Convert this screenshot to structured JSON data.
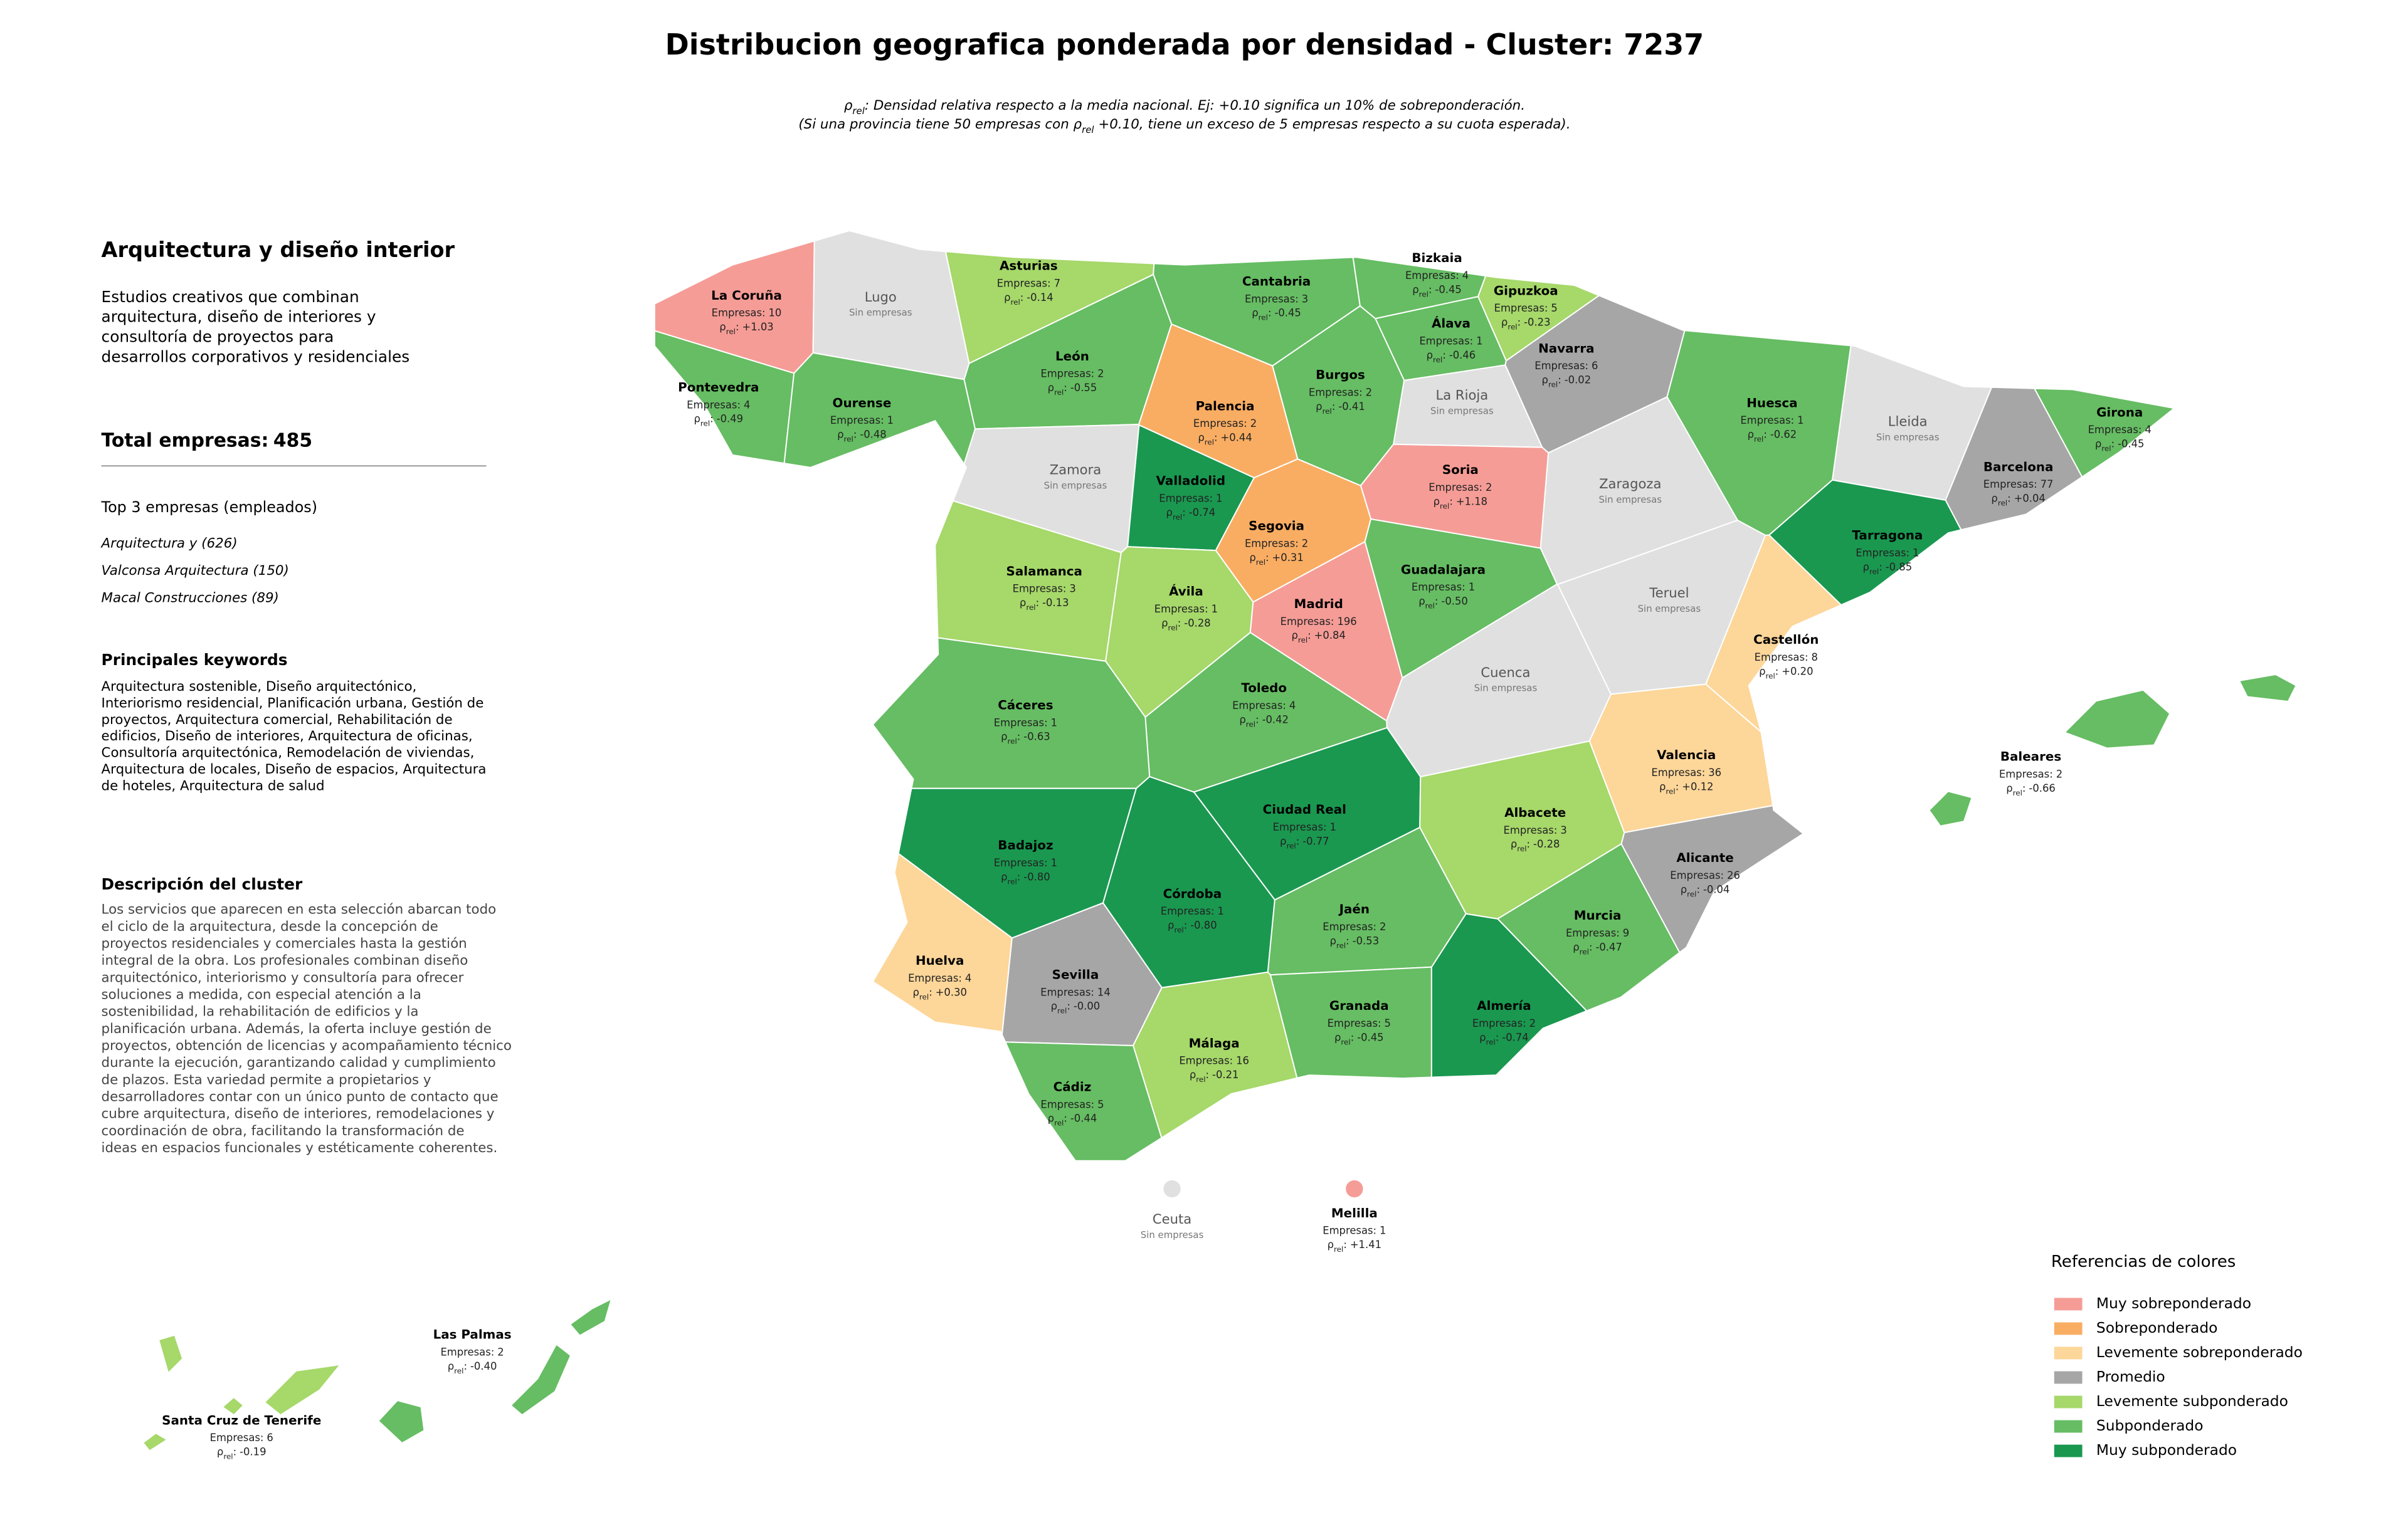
{
  "header": {
    "title": "Distribucion geografica ponderada por densidad - Cluster: 7237",
    "subtitle": [
      [
        {
          "text": "ρ"
        },
        {
          "text": "rel",
          "sub": true
        },
        {
          "text": ": Densidad relativa respecto a la media nacional. Ej: +0.10 significa un 10% de sobreponderación."
        }
      ],
      [
        {
          "text": "(Si una provincia tiene 50 empresas con ρ"
        },
        {
          "text": "rel",
          "sub": true
        },
        {
          "text": " +0.10, tiene un exceso de 5 empresas respecto a su cuota esperada)."
        }
      ]
    ]
  },
  "sidebar": {
    "title": "Arquitectura y diseño interior",
    "summary": [
      "Estudios creativos que combinan",
      "arquitectura, diseño de interiores y",
      "consultoría de proyectos para",
      "desarrollos corporativos y residenciales"
    ],
    "total_label": "Total empresas:",
    "total": 485,
    "top_heading": "Top 3 empresas (empleados)",
    "top": [
      "Arquitectura y (626)",
      "Valconsa Arquitectura (150)",
      "Macal Construcciones (89)"
    ],
    "keywords_heading": "Principales keywords",
    "keywords": [
      "Arquitectura sostenible, Diseño arquitectónico,",
      "Interiorismo residencial, Planificación urbana, Gestión de",
      "proyectos, Arquitectura comercial, Rehabilitación de",
      "edificios, Diseño de interiores, Arquitectura de oficinas,",
      "Consultoría arquitectónica, Remodelación de viviendas,",
      "Arquitectura de locales, Diseño de espacios, Arquitectura",
      "de hoteles, Arquitectura de salud"
    ],
    "description_heading": "Descripción del cluster",
    "description": [
      "Los servicios que aparecen en esta selección abarcan todo",
      "el ciclo de la arquitectura, desde la concepción de",
      "proyectos residenciales y comerciales hasta la gestión",
      "integral de la obra. Los profesionales combinan diseño",
      "arquitectónico, interiorismo y consultoría para ofrecer",
      "soluciones a medida, con especial atención a la",
      "sostenibilidad, la rehabilitación de edificios y la",
      "planificación urbana. Además, la oferta incluye gestión de",
      "proyectos, obtención de licencias y acompañamiento técnico",
      "durante la ejecución, garantizando calidad y cumplimiento",
      "de plazos. Esta variedad permite a propietarios y",
      "desarrolladores contar con un único punto de contacto que",
      "cubre arquitectura, diseño de interiores, remodelaciones y",
      "coordinación de obra, facilitando la transformación de",
      "ideas en espacios funcionales y estéticamente coherentes."
    ]
  },
  "map": {
    "empresas_label": "Empresas:",
    "rho_symbol": "ρ",
    "rho_subscript": "rel",
    "rho_suffix": ":",
    "no_data_label": "Sin empresas",
    "no_data_color": "#e0e0e0",
    "provinces": [
      {
        "name": "La Coruña",
        "empresas": 10,
        "rho": 1.03,
        "rho_label": "+1.03",
        "category": 0
      },
      {
        "name": "Lugo"
      },
      {
        "name": "Asturias",
        "empresas": 7,
        "rho": -0.14,
        "rho_label": "-0.14",
        "category": 4
      },
      {
        "name": "Cantabria",
        "empresas": 3,
        "rho": -0.45,
        "rho_label": "-0.45",
        "category": 5
      },
      {
        "name": "Bizkaia",
        "empresas": 4,
        "rho": -0.45,
        "rho_label": "-0.45",
        "category": 5
      },
      {
        "name": "Gipuzkoa",
        "empresas": 5,
        "rho": -0.23,
        "rho_label": "-0.23",
        "category": 4
      },
      {
        "name": "Álava",
        "empresas": 1,
        "rho": -0.46,
        "rho_label": "-0.46",
        "category": 5
      },
      {
        "name": "Navarra",
        "empresas": 6,
        "rho": -0.02,
        "rho_label": "-0.02",
        "category": 3
      },
      {
        "name": "Pontevedra",
        "empresas": 4,
        "rho": -0.49,
        "rho_label": "-0.49",
        "category": 5
      },
      {
        "name": "Ourense",
        "empresas": 1,
        "rho": -0.48,
        "rho_label": "-0.48",
        "category": 5
      },
      {
        "name": "León",
        "empresas": 2,
        "rho": -0.55,
        "rho_label": "-0.55",
        "category": 5
      },
      {
        "name": "Palencia",
        "empresas": 2,
        "rho": 0.44,
        "rho_label": "+0.44",
        "category": 1
      },
      {
        "name": "Burgos",
        "empresas": 2,
        "rho": -0.41,
        "rho_label": "-0.41",
        "category": 5
      },
      {
        "name": "La Rioja"
      },
      {
        "name": "Huesca",
        "empresas": 1,
        "rho": -0.62,
        "rho_label": "-0.62",
        "category": 5
      },
      {
        "name": "Lleida"
      },
      {
        "name": "Girona",
        "empresas": 4,
        "rho": -0.45,
        "rho_label": "-0.45",
        "category": 5
      },
      {
        "name": "Zamora"
      },
      {
        "name": "Valladolid",
        "empresas": 1,
        "rho": -0.74,
        "rho_label": "-0.74",
        "category": 6
      },
      {
        "name": "Soria",
        "empresas": 2,
        "rho": 1.18,
        "rho_label": "+1.18",
        "category": 0
      },
      {
        "name": "Zaragoza"
      },
      {
        "name": "Barcelona",
        "empresas": 77,
        "rho": 0.04,
        "rho_label": "+0.04",
        "category": 3
      },
      {
        "name": "Segovia",
        "empresas": 2,
        "rho": 0.31,
        "rho_label": "+0.31",
        "category": 1
      },
      {
        "name": "Tarragona",
        "empresas": 1,
        "rho": -0.85,
        "rho_label": "-0.85",
        "category": 6
      },
      {
        "name": "Salamanca",
        "empresas": 3,
        "rho": -0.13,
        "rho_label": "-0.13",
        "category": 4
      },
      {
        "name": "Guadalajara",
        "empresas": 1,
        "rho": -0.5,
        "rho_label": "-0.50",
        "category": 5
      },
      {
        "name": "Ávila",
        "empresas": 1,
        "rho": -0.28,
        "rho_label": "-0.28",
        "category": 4
      },
      {
        "name": "Madrid",
        "empresas": 196,
        "rho": 0.84,
        "rho_label": "+0.84",
        "category": 0
      },
      {
        "name": "Teruel"
      },
      {
        "name": "Castellón",
        "empresas": 8,
        "rho": 0.2,
        "rho_label": "+0.20",
        "category": 2
      },
      {
        "name": "Cuenca"
      },
      {
        "name": "Toledo",
        "empresas": 4,
        "rho": -0.42,
        "rho_label": "-0.42",
        "category": 5
      },
      {
        "name": "Cáceres",
        "empresas": 1,
        "rho": -0.63,
        "rho_label": "-0.63",
        "category": 5
      },
      {
        "name": "Valencia",
        "empresas": 36,
        "rho": 0.12,
        "rho_label": "+0.12",
        "category": 2
      },
      {
        "name": "Baleares",
        "empresas": 2,
        "rho": -0.66,
        "rho_label": "-0.66",
        "category": 5
      },
      {
        "name": "Ciudad Real",
        "empresas": 1,
        "rho": -0.77,
        "rho_label": "-0.77",
        "category": 6
      },
      {
        "name": "Albacete",
        "empresas": 3,
        "rho": -0.28,
        "rho_label": "-0.28",
        "category": 4
      },
      {
        "name": "Badajoz",
        "empresas": 1,
        "rho": -0.8,
        "rho_label": "-0.80",
        "category": 6
      },
      {
        "name": "Alicante",
        "empresas": 26,
        "rho": -0.04,
        "rho_label": "-0.04",
        "category": 3
      },
      {
        "name": "Córdoba",
        "empresas": 1,
        "rho": -0.8,
        "rho_label": "-0.80",
        "category": 6
      },
      {
        "name": "Jaén",
        "empresas": 2,
        "rho": -0.53,
        "rho_label": "-0.53",
        "category": 5
      },
      {
        "name": "Murcia",
        "empresas": 9,
        "rho": -0.47,
        "rho_label": "-0.47",
        "category": 5
      },
      {
        "name": "Huelva",
        "empresas": 4,
        "rho": 0.3,
        "rho_label": "+0.30",
        "category": 2
      },
      {
        "name": "Sevilla",
        "empresas": 14,
        "rho": 0,
        "rho_label": "-0.00",
        "category": 3
      },
      {
        "name": "Granada",
        "empresas": 5,
        "rho": -0.45,
        "rho_label": "-0.45",
        "category": 5
      },
      {
        "name": "Almería",
        "empresas": 2,
        "rho": -0.74,
        "rho_label": "-0.74",
        "category": 6
      },
      {
        "name": "Málaga",
        "empresas": 16,
        "rho": -0.21,
        "rho_label": "-0.21",
        "category": 4
      },
      {
        "name": "Cádiz",
        "empresas": 5,
        "rho": -0.44,
        "rho_label": "-0.44",
        "category": 5
      },
      {
        "name": "Ceuta"
      },
      {
        "name": "Melilla",
        "empresas": 1,
        "rho": 1.41,
        "rho_label": "+1.41",
        "category": 0
      },
      {
        "name": "Las Palmas",
        "empresas": 2,
        "rho": -0.4,
        "rho_label": "-0.40",
        "category": 5
      },
      {
        "name": "Santa Cruz de Tenerife",
        "empresas": 6,
        "rho": -0.19,
        "rho_label": "-0.19",
        "category": 4
      }
    ]
  },
  "legend": {
    "title": "Referencias de colores",
    "categories": [
      {
        "name": "Muy sobreponderado",
        "color": "#f59c96"
      },
      {
        "name": "Sobreponderado",
        "color": "#f9ad63"
      },
      {
        "name": "Levemente sobreponderado",
        "color": "#fdd699"
      },
      {
        "name": "Promedio",
        "color": "#a6a6a6"
      },
      {
        "name": "Levemente subponderado",
        "color": "#a6d86a"
      },
      {
        "name": "Subponderado",
        "color": "#66bd63"
      },
      {
        "name": "Muy subponderado",
        "color": "#1a9850"
      }
    ]
  }
}
